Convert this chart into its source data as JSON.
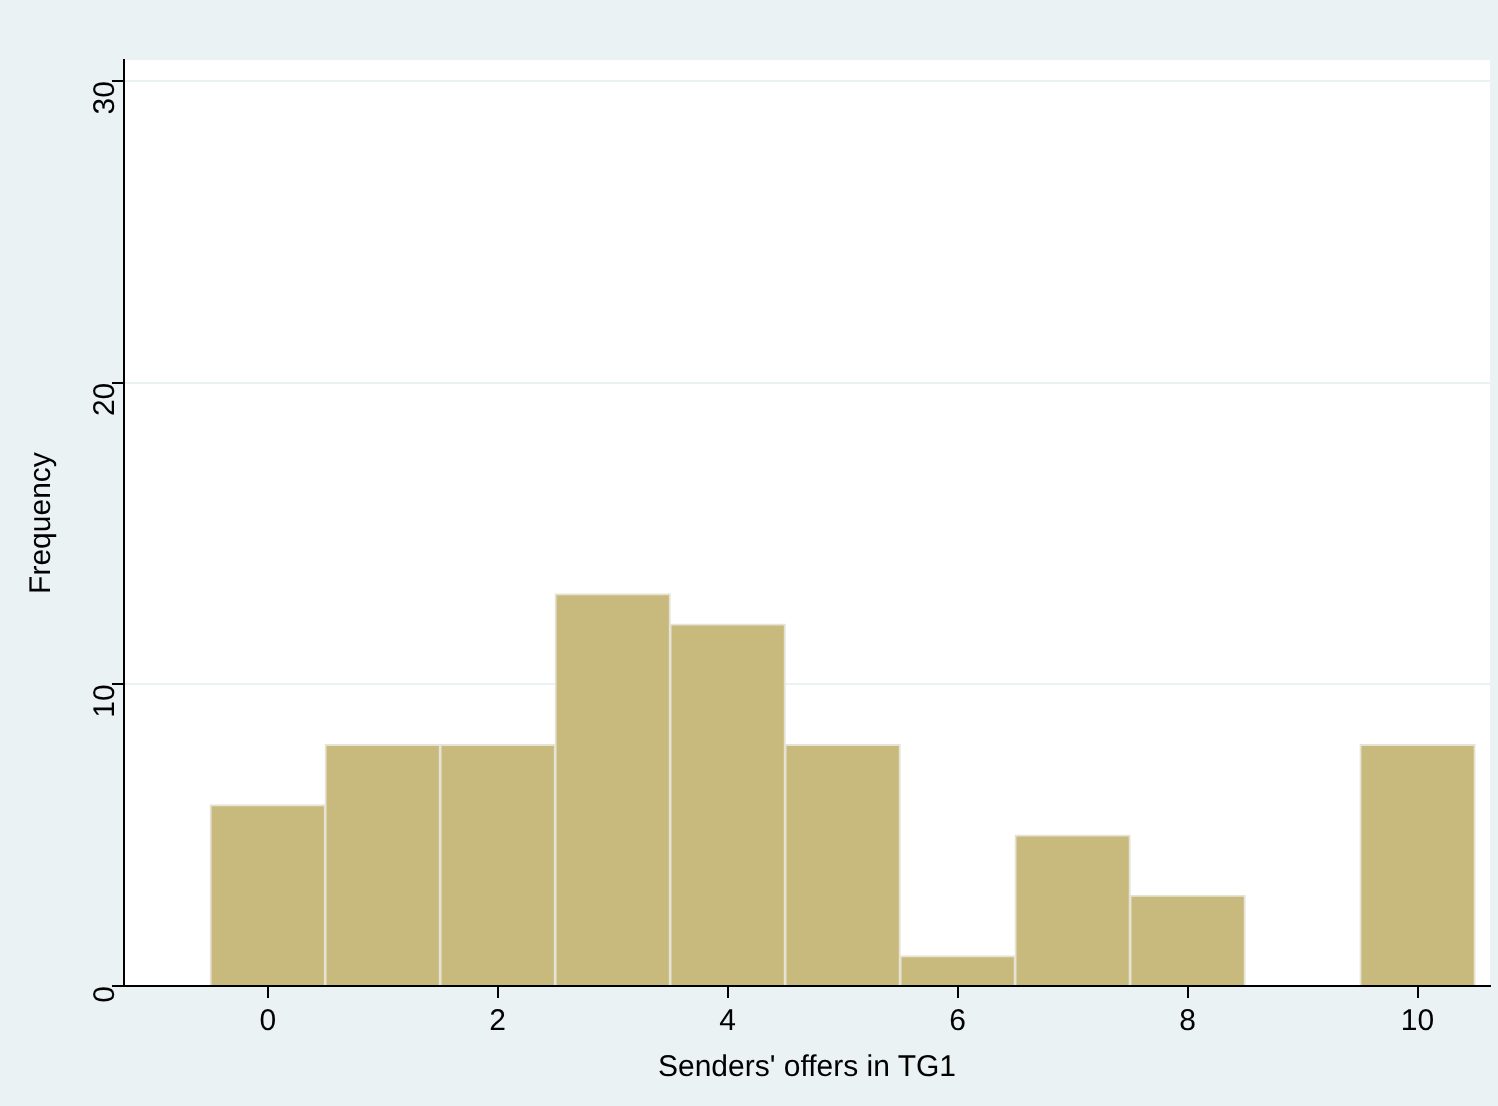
{
  "chart_data": {
    "type": "histogram",
    "xlabel": "Senders' offers in TG1",
    "ylabel": "Frequency",
    "bins": [
      -0.5,
      0.5,
      1.5,
      2.5,
      3.5,
      4.5,
      5.5,
      6.5,
      7.5,
      8.5,
      9.5,
      10.5
    ],
    "values": [
      6,
      8,
      8,
      13,
      12,
      8,
      1,
      5,
      3,
      0,
      8
    ],
    "color": "#c8ba7c",
    "xlim": [
      -1.25,
      10.63
    ],
    "xticks": [
      0,
      2,
      4,
      6,
      8,
      10
    ],
    "ylim": [
      0,
      30.7
    ],
    "yticks": [
      0,
      10,
      20,
      30
    ],
    "grid": "y",
    "legend": false
  }
}
